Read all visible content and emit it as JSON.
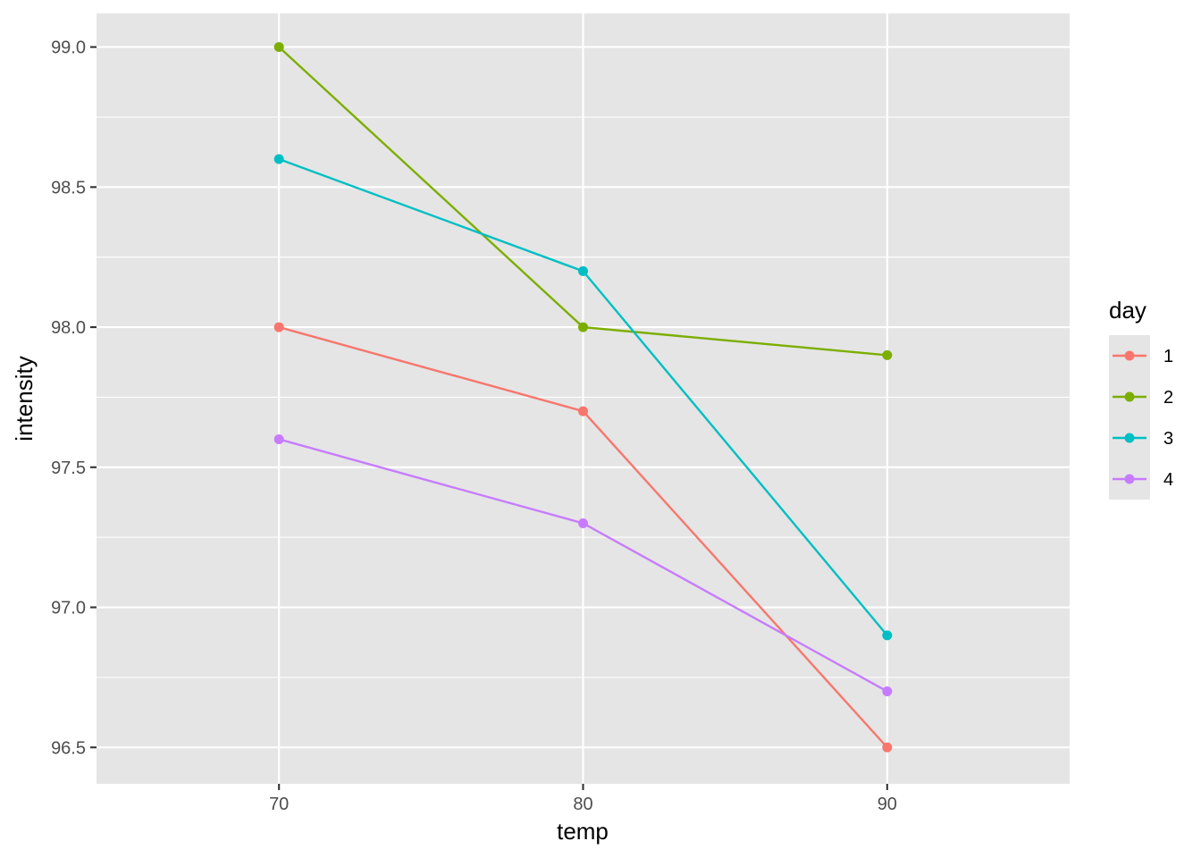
{
  "chart_data": {
    "type": "line",
    "xlabel": "temp",
    "ylabel": "intensity",
    "x": [
      70,
      80,
      90
    ],
    "xlim": [
      64,
      96
    ],
    "ylim": [
      96.37,
      99.12
    ],
    "x_ticks": [
      70,
      80,
      90
    ],
    "y_ticks": [
      96.5,
      97.0,
      97.5,
      98.0,
      98.5,
      99.0
    ],
    "x_tick_labels": [
      "70",
      "80",
      "90"
    ],
    "y_tick_labels": [
      "96.5",
      "97.0",
      "97.5",
      "98.0",
      "98.5",
      "99.0"
    ],
    "grid": true,
    "legend": {
      "title": "day",
      "position": "right"
    },
    "series": [
      {
        "name": "1",
        "color": "#F8766D",
        "values": [
          98.0,
          97.7,
          96.5
        ]
      },
      {
        "name": "2",
        "color": "#7CAE00",
        "values": [
          99.0,
          98.0,
          97.9
        ]
      },
      {
        "name": "3",
        "color": "#00BFC4",
        "values": [
          98.6,
          98.2,
          96.9
        ]
      },
      {
        "name": "4",
        "color": "#C77CFF",
        "values": [
          97.6,
          97.3,
          96.7
        ]
      }
    ]
  }
}
